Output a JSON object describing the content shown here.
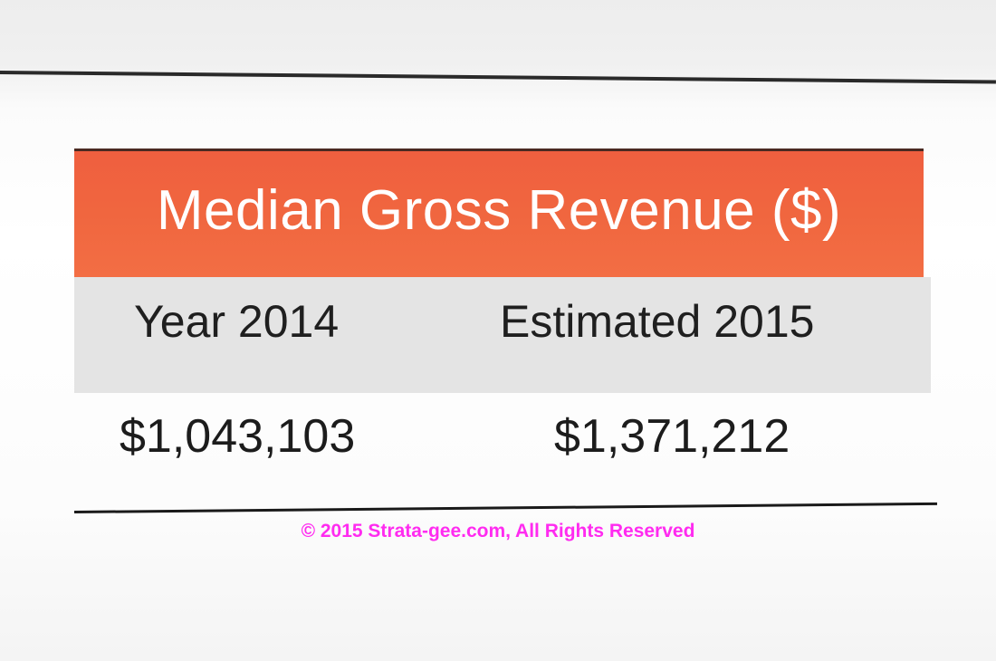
{
  "chart_data": {
    "type": "table",
    "title": "Median Gross Revenue ($)",
    "columns": [
      "Year 2014",
      "Estimated 2015"
    ],
    "rows": [
      [
        "$1,043,103",
        "$1,371,212"
      ]
    ],
    "values": [
      1043103,
      1371212
    ],
    "colors": {
      "title_bar": "#f0663f",
      "header_row": "#e4e4e4",
      "text": "#1f1f1f",
      "copyright": "#ff2bf0"
    }
  },
  "copyright": "© 2015 Strata-gee.com, All Rights Reserved"
}
